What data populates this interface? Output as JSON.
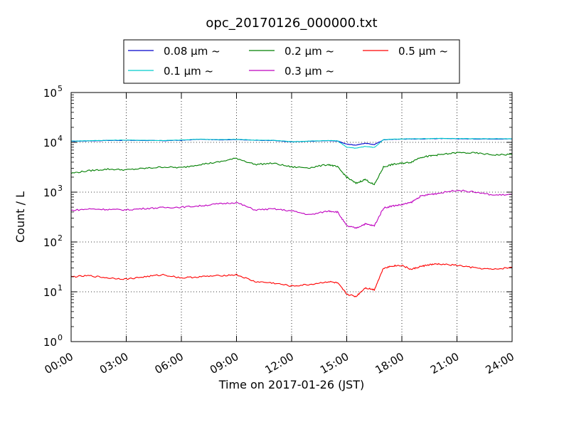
{
  "chart_data": {
    "type": "line",
    "title": "opc_20170126_000000.txt",
    "xlabel": "Time on 2017-01-26 (JST)",
    "ylabel": "Count / L",
    "y_scale": "log",
    "ylim": [
      1,
      100000
    ],
    "xlim": [
      "00:00",
      "24:00"
    ],
    "x_ticks": [
      "00:00",
      "03:00",
      "06:00",
      "09:00",
      "12:00",
      "15:00",
      "18:00",
      "21:00",
      "24:00"
    ],
    "y_ticks": [
      {
        "base": "10",
        "exp": "0",
        "value": 1
      },
      {
        "base": "10",
        "exp": "1",
        "value": 10
      },
      {
        "base": "10",
        "exp": "2",
        "value": 100
      },
      {
        "base": "10",
        "exp": "3",
        "value": 1000
      },
      {
        "base": "10",
        "exp": "4",
        "value": 10000
      },
      {
        "base": "10",
        "exp": "5",
        "value": 100000
      }
    ],
    "grid": true,
    "legend_position": "top-center",
    "x": [
      "00:00",
      "01:00",
      "02:00",
      "03:00",
      "04:00",
      "05:00",
      "06:00",
      "07:00",
      "08:00",
      "09:00",
      "10:00",
      "11:00",
      "12:00",
      "13:00",
      "14:00",
      "14:30",
      "15:00",
      "15:30",
      "16:00",
      "16:30",
      "17:00",
      "17:30",
      "18:00",
      "18:30",
      "19:00",
      "19:30",
      "20:00",
      "21:00",
      "22:00",
      "23:00",
      "24:00"
    ],
    "series": [
      {
        "name": "0.08 μm ~",
        "color": "#0000cc",
        "values": [
          10500,
          10700,
          10900,
          11000,
          10900,
          10800,
          11000,
          11500,
          11200,
          11400,
          11000,
          10900,
          10200,
          10500,
          10800,
          10600,
          9200,
          8800,
          9600,
          9000,
          11200,
          11500,
          11600,
          11700,
          11700,
          11800,
          11900,
          11800,
          11700,
          11700,
          11700
        ]
      },
      {
        "name": "0.1 μm ~",
        "color": "#00cccc",
        "values": [
          10600,
          10800,
          11000,
          11100,
          11000,
          10900,
          11100,
          11600,
          11300,
          11500,
          11100,
          11000,
          10300,
          10600,
          10900,
          10700,
          8000,
          7600,
          8300,
          7900,
          11300,
          11600,
          11700,
          11800,
          11800,
          11900,
          12000,
          11900,
          11800,
          11800,
          11800
        ]
      },
      {
        "name": "0.2 μm ~",
        "color": "#007f00",
        "values": [
          2400,
          2700,
          2900,
          2800,
          3000,
          3200,
          3100,
          3600,
          4000,
          4800,
          3600,
          3800,
          3200,
          3100,
          3600,
          3200,
          2000,
          1500,
          1800,
          1400,
          3200,
          3600,
          3800,
          4000,
          5000,
          5300,
          5600,
          6200,
          6100,
          5600,
          5700
        ]
      },
      {
        "name": "0.3 μm ~",
        "color": "#bf00bf",
        "values": [
          430,
          460,
          450,
          440,
          470,
          490,
          500,
          530,
          580,
          620,
          440,
          460,
          420,
          350,
          420,
          400,
          210,
          190,
          230,
          210,
          480,
          530,
          560,
          620,
          820,
          900,
          950,
          1100,
          1000,
          870,
          900
        ]
      },
      {
        "name": "0.5 μm ~",
        "color": "#ff0000",
        "values": [
          20,
          21,
          19,
          18,
          20,
          22,
          19,
          20,
          21,
          22,
          16,
          15,
          13,
          14,
          16,
          15,
          9,
          8,
          12,
          11,
          30,
          33,
          34,
          28,
          32,
          35,
          36,
          34,
          30,
          28,
          31
        ]
      }
    ]
  }
}
